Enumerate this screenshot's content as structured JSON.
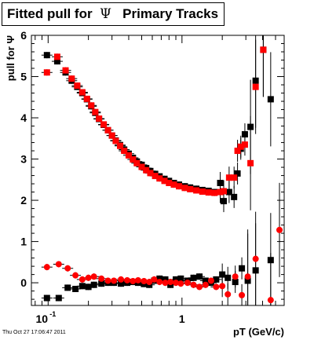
{
  "title": {
    "prefix": "Fitted pull for",
    "symbol": "Ψ",
    "suffix": "Primary Tracks"
  },
  "footer": {
    "date": "Thu Oct 27 17:06:47 2011"
  },
  "colors": {
    "series_black": "#000000",
    "series_red": "#ff0000",
    "frame": "#000000",
    "background": "#ffffff"
  },
  "chart_data": {
    "type": "scatter",
    "title": "Fitted pull for Ψ Primary Tracks",
    "xlabel": "pT (GeV/c)",
    "ylabel": "pull for Ψ",
    "xscale": "log",
    "xlim": [
      0.075,
      5.8
    ],
    "ylim": [
      -0.55,
      6
    ],
    "grid": false,
    "legend": "none",
    "x_ticks": [
      {
        "value": 0.1,
        "label": "10",
        "exp": "-1"
      },
      {
        "value": 1,
        "label": "1",
        "exp": ""
      }
    ],
    "y_ticks": [
      0,
      1,
      2,
      3,
      4,
      5,
      6
    ],
    "series": [
      {
        "marker": "square",
        "color": "#000000",
        "points": [
          [
            0.098,
            5.52
          ],
          [
            0.117,
            5.37
          ],
          [
            0.135,
            5.1
          ],
          [
            0.15,
            4.9
          ],
          [
            0.165,
            4.75
          ],
          [
            0.18,
            4.6
          ],
          [
            0.195,
            4.45
          ],
          [
            0.21,
            4.28
          ],
          [
            0.225,
            4.12
          ],
          [
            0.24,
            3.97
          ],
          [
            0.26,
            3.83
          ],
          [
            0.28,
            3.7
          ],
          [
            0.3,
            3.57
          ],
          [
            0.32,
            3.45
          ],
          [
            0.345,
            3.34
          ],
          [
            0.37,
            3.23
          ],
          [
            0.4,
            3.13
          ],
          [
            0.43,
            3.03
          ],
          [
            0.46,
            2.94
          ],
          [
            0.5,
            2.86
          ],
          [
            0.54,
            2.78
          ],
          [
            0.58,
            2.71
          ],
          [
            0.63,
            2.64
          ],
          [
            0.68,
            2.58
          ],
          [
            0.74,
            2.52
          ],
          [
            0.8,
            2.47
          ],
          [
            0.87,
            2.42
          ],
          [
            0.95,
            2.38
          ],
          [
            1.05,
            2.34
          ],
          [
            1.15,
            2.31
          ],
          [
            1.28,
            2.28
          ],
          [
            1.42,
            2.25
          ],
          [
            1.58,
            2.23
          ],
          [
            1.75,
            2.2
          ],
          [
            1.93,
            2.42
          ],
          [
            2.05,
            1.98
          ],
          [
            2.25,
            2.2
          ],
          [
            2.45,
            2.08
          ],
          [
            2.6,
            2.65
          ],
          [
            2.75,
            3.25
          ],
          [
            2.95,
            3.6
          ],
          [
            3.25,
            3.78
          ],
          [
            3.55,
            4.9
          ],
          [
            4.05,
            5.65
          ],
          [
            4.6,
            4.45
          ],
          [
            0.098,
            -0.37
          ],
          [
            0.12,
            -0.37
          ],
          [
            0.14,
            -0.12
          ],
          [
            0.16,
            -0.15
          ],
          [
            0.18,
            -0.08
          ],
          [
            0.2,
            -0.1
          ],
          [
            0.22,
            -0.05
          ],
          [
            0.25,
            -0.02
          ],
          [
            0.28,
            0.0
          ],
          [
            0.31,
            0.0
          ],
          [
            0.35,
            -0.02
          ],
          [
            0.39,
            0.0
          ],
          [
            0.43,
            0.02
          ],
          [
            0.47,
            0.0
          ],
          [
            0.52,
            -0.03
          ],
          [
            0.57,
            -0.05
          ],
          [
            0.62,
            0.05
          ],
          [
            0.68,
            0.1
          ],
          [
            0.75,
            0.08
          ],
          [
            0.82,
            -0.05
          ],
          [
            0.9,
            0.08
          ],
          [
            0.98,
            0.1
          ],
          [
            1.1,
            0.05
          ],
          [
            1.22,
            0.12
          ],
          [
            1.35,
            0.15
          ],
          [
            1.5,
            0.05
          ],
          [
            1.65,
            0.0
          ],
          [
            1.8,
            0.08
          ],
          [
            2.0,
            0.2
          ],
          [
            2.2,
            0.12
          ],
          [
            2.5,
            0.02
          ],
          [
            2.8,
            0.35
          ],
          [
            3.1,
            0.05
          ],
          [
            3.55,
            0.3
          ],
          [
            4.6,
            0.55
          ]
        ]
      },
      {
        "marker": "circle-square",
        "color": "#ff0000",
        "points": [
          [
            0.098,
            5.1
          ],
          [
            0.117,
            5.48
          ],
          [
            0.135,
            5.15
          ],
          [
            0.15,
            4.95
          ],
          [
            0.165,
            4.78
          ],
          [
            0.18,
            4.62
          ],
          [
            0.195,
            4.46
          ],
          [
            0.21,
            4.3
          ],
          [
            0.225,
            4.14
          ],
          [
            0.24,
            3.98
          ],
          [
            0.26,
            3.84
          ],
          [
            0.28,
            3.7
          ],
          [
            0.3,
            3.57
          ],
          [
            0.32,
            3.44
          ],
          [
            0.345,
            3.32
          ],
          [
            0.37,
            3.2
          ],
          [
            0.4,
            3.09
          ],
          [
            0.43,
            2.99
          ],
          [
            0.46,
            2.9
          ],
          [
            0.5,
            2.81
          ],
          [
            0.54,
            2.73
          ],
          [
            0.58,
            2.66
          ],
          [
            0.63,
            2.59
          ],
          [
            0.68,
            2.53
          ],
          [
            0.74,
            2.47
          ],
          [
            0.8,
            2.42
          ],
          [
            0.87,
            2.38
          ],
          [
            0.95,
            2.34
          ],
          [
            1.05,
            2.3
          ],
          [
            1.15,
            2.27
          ],
          [
            1.28,
            2.24
          ],
          [
            1.42,
            2.21
          ],
          [
            1.58,
            2.19
          ],
          [
            1.75,
            2.18
          ],
          [
            1.93,
            2.2
          ],
          [
            2.05,
            2.22
          ],
          [
            2.25,
            2.55
          ],
          [
            2.45,
            2.55
          ],
          [
            2.6,
            3.2
          ],
          [
            2.75,
            3.3
          ],
          [
            2.95,
            3.35
          ],
          [
            3.25,
            2.9
          ],
          [
            3.55,
            4.75
          ],
          [
            4.05,
            5.65
          ],
          [
            0.098,
            0.38
          ],
          [
            0.12,
            0.45
          ],
          [
            0.14,
            0.35
          ],
          [
            0.16,
            0.18
          ],
          [
            0.18,
            0.08
          ],
          [
            0.2,
            0.12
          ],
          [
            0.22,
            0.15
          ],
          [
            0.25,
            0.1
          ],
          [
            0.28,
            0.05
          ],
          [
            0.31,
            0.05
          ],
          [
            0.35,
            0.08
          ],
          [
            0.39,
            0.06
          ],
          [
            0.43,
            0.04
          ],
          [
            0.47,
            0.06
          ],
          [
            0.52,
            0.04
          ],
          [
            0.57,
            0.02
          ],
          [
            0.62,
            0.08
          ],
          [
            0.68,
            0.02
          ],
          [
            0.75,
            0.0
          ],
          [
            0.82,
            0.02
          ],
          [
            0.9,
            0.0
          ],
          [
            0.98,
            -0.02
          ],
          [
            1.1,
            0.0
          ],
          [
            1.22,
            -0.05
          ],
          [
            1.35,
            -0.1
          ],
          [
            1.5,
            -0.05
          ],
          [
            1.65,
            0.05
          ],
          [
            1.8,
            -0.1
          ],
          [
            2.0,
            -0.08
          ],
          [
            2.2,
            -0.28
          ],
          [
            2.5,
            0.15
          ],
          [
            2.8,
            -0.3
          ],
          [
            3.1,
            0.15
          ],
          [
            3.55,
            0.58
          ],
          [
            4.6,
            -0.42
          ],
          [
            5.35,
            1.28
          ]
        ]
      }
    ]
  }
}
